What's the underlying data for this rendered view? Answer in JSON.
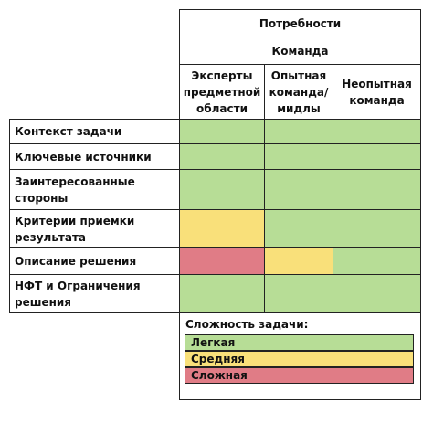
{
  "colors": {
    "easy": "#b7dd96",
    "medium": "#f9e07a",
    "hard": "#e07c86"
  },
  "header": {
    "top": "Потребности",
    "sub": "Команда",
    "columns": [
      "Эксперты\nпредметной\nобласти",
      "Опытная\nкоманда/\nмидлы",
      "Неопытная\nкоманда"
    ]
  },
  "rows": [
    {
      "label": "Контекст задачи",
      "cells": [
        "easy",
        "easy",
        "easy"
      ]
    },
    {
      "label": "Ключевые источники",
      "cells": [
        "easy",
        "easy",
        "easy"
      ]
    },
    {
      "label": "Заинтересованные\nстороны",
      "cells": [
        "easy",
        "easy",
        "easy"
      ]
    },
    {
      "label": "Критерии приемки\nрезультата",
      "cells": [
        "medium",
        "easy",
        "easy"
      ]
    },
    {
      "label": "Описание решения",
      "cells": [
        "hard",
        "medium",
        "easy"
      ]
    },
    {
      "label": "НФТ и Ограничения\nрешения",
      "cells": [
        "easy",
        "easy",
        "easy"
      ]
    }
  ],
  "legend": {
    "title": "Сложность задачи:",
    "items": [
      {
        "label": "Легкая",
        "level": "easy"
      },
      {
        "label": "Средняя",
        "level": "medium"
      },
      {
        "label": "Сложная",
        "level": "hard"
      }
    ]
  }
}
